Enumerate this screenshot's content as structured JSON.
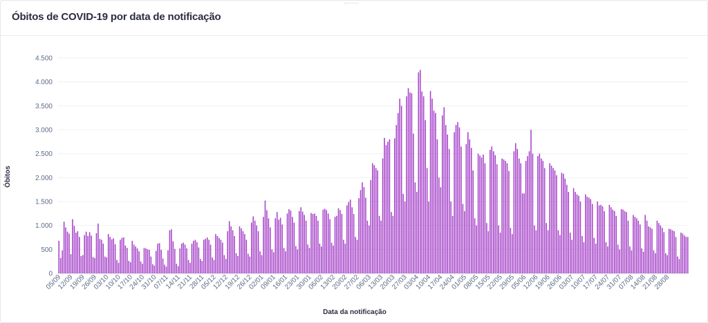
{
  "header": {
    "title": "Óbitos de COVID-19 por data de notificação"
  },
  "colors": {
    "bar": "#a43fc7",
    "grid": "#eef0f3",
    "tick": "#5b6c88",
    "title": "#2b2d42"
  },
  "chart_data": {
    "type": "bar",
    "title": "Óbitos de COVID-19 por data de notificação",
    "xlabel": "Data da notificação",
    "ylabel": "Óbitos",
    "ylim": [
      0,
      4500
    ],
    "yticks": [
      0,
      500,
      1000,
      1500,
      2000,
      2500,
      3000,
      3500,
      4000,
      4500
    ],
    "ytick_labels": [
      "0",
      "500",
      "1.000",
      "1.500",
      "2.000",
      "2.500",
      "3.000",
      "3.500",
      "4.000",
      "4.500"
    ],
    "grid": true,
    "legend": "none",
    "x_tick_labels": [
      "05/09",
      "12/09",
      "19/09",
      "26/09",
      "03/10",
      "10/10",
      "17/10",
      "24/10",
      "31/10",
      "07/11",
      "14/11",
      "21/11",
      "28/11",
      "05/12",
      "12/12",
      "19/12",
      "26/12",
      "02/01",
      "09/01",
      "16/01",
      "23/01",
      "30/01",
      "06/02",
      "13/02",
      "20/02",
      "27/02",
      "06/03",
      "13/03",
      "20/03",
      "27/03",
      "03/04",
      "10/04",
      "17/04",
      "24/04",
      "01/05",
      "08/05",
      "15/05",
      "22/05",
      "29/05",
      "05/06",
      "12/06",
      "19/06",
      "26/06",
      "03/07",
      "10/07",
      "17/07",
      "24/07",
      "31/07",
      "07/08",
      "14/08",
      "21/08",
      "28/08"
    ],
    "weekly_pattern_note": "",
    "values": [
      680,
      320,
      480,
      1080,
      960,
      870,
      830,
      400,
      1130,
      990,
      850,
      880,
      760,
      360,
      380,
      800,
      870,
      780,
      860,
      790,
      340,
      320,
      840,
      1040,
      720,
      700,
      620,
      350,
      330,
      820,
      760,
      710,
      730,
      610,
      280,
      220,
      700,
      740,
      750,
      580,
      530,
      260,
      230,
      680,
      600,
      560,
      520,
      460,
      250,
      200,
      530,
      520,
      500,
      490,
      350,
      190,
      160,
      470,
      620,
      630,
      490,
      310,
      180,
      140,
      480,
      900,
      920,
      670,
      510,
      200,
      150,
      520,
      620,
      640,
      600,
      520,
      280,
      220,
      620,
      680,
      700,
      650,
      540,
      300,
      260,
      700,
      720,
      750,
      700,
      600,
      330,
      280,
      820,
      780,
      740,
      700,
      640,
      380,
      300,
      880,
      1090,
      980,
      900,
      780,
      420,
      360,
      980,
      940,
      880,
      820,
      700,
      410,
      350,
      1060,
      1190,
      1100,
      1000,
      880,
      460,
      380,
      1180,
      1520,
      1320,
      1150,
      960,
      500,
      440,
      1150,
      1280,
      1120,
      1160,
      1020,
      530,
      460,
      1250,
      1340,
      1310,
      1180,
      1060,
      570,
      500,
      1300,
      1380,
      1290,
      1220,
      1100,
      600,
      530,
      1260,
      1240,
      1250,
      1200,
      1100,
      620,
      560,
      1330,
      1350,
      1320,
      1250,
      1130,
      640,
      580,
      1180,
      1200,
      1360,
      1320,
      1240,
      700,
      620,
      1420,
      1490,
      1540,
      1380,
      1240,
      760,
      700,
      1570,
      1740,
      1900,
      1800,
      1580,
      1100,
      1000,
      1950,
      2300,
      2260,
      2200,
      2150,
      1200,
      1100,
      2400,
      2830,
      2680,
      2750,
      2800,
      1280,
      1200,
      2820,
      3100,
      3350,
      3650,
      3500,
      1660,
      1500,
      3700,
      3870,
      3780,
      3760,
      2920,
      1900,
      1700,
      4200,
      4250,
      3800,
      3700,
      3200,
      2200,
      1500,
      3810,
      3650,
      3400,
      3350,
      2800,
      2000,
      1800,
      3300,
      3470,
      3100,
      2900,
      2600,
      1500,
      1200,
      2950,
      3100,
      3160,
      3050,
      2650,
      1450,
      1300,
      2700,
      2950,
      2800,
      2620,
      2150,
      1150,
      1000,
      2500,
      2460,
      2420,
      2480,
      2300,
      1050,
      880,
      2580,
      2650,
      2550,
      2470,
      2280,
      1000,
      850,
      2400,
      2380,
      2350,
      2300,
      2140,
      950,
      820,
      2550,
      2720,
      2600,
      2400,
      2300,
      1670,
      1670,
      2350,
      2450,
      2550,
      3000,
      2500,
      1000,
      900,
      2450,
      2500,
      2400,
      2350,
      2200,
      1050,
      900,
      2300,
      2250,
      2200,
      2150,
      2050,
      900,
      800,
      2100,
      2080,
      1980,
      1850,
      1700,
      850,
      700,
      1780,
      1700,
      1650,
      1620,
      1500,
      780,
      650,
      1650,
      1600,
      1580,
      1550,
      1450,
      740,
      620,
      1500,
      1420,
      1430,
      1400,
      1300,
      650,
      560,
      1430,
      1380,
      1330,
      1300,
      1200,
      600,
      500,
      1340,
      1330,
      1300,
      1280,
      1100,
      560,
      480,
      1220,
      1180,
      1150,
      1100,
      1020,
      520,
      450,
      1220,
      1100,
      980,
      960,
      930,
      480,
      420,
      1100,
      1050,
      1000,
      950,
      860,
      420,
      380,
      930,
      920,
      900,
      880,
      760,
      350,
      300,
      850,
      830,
      790,
      760,
      760
    ]
  }
}
